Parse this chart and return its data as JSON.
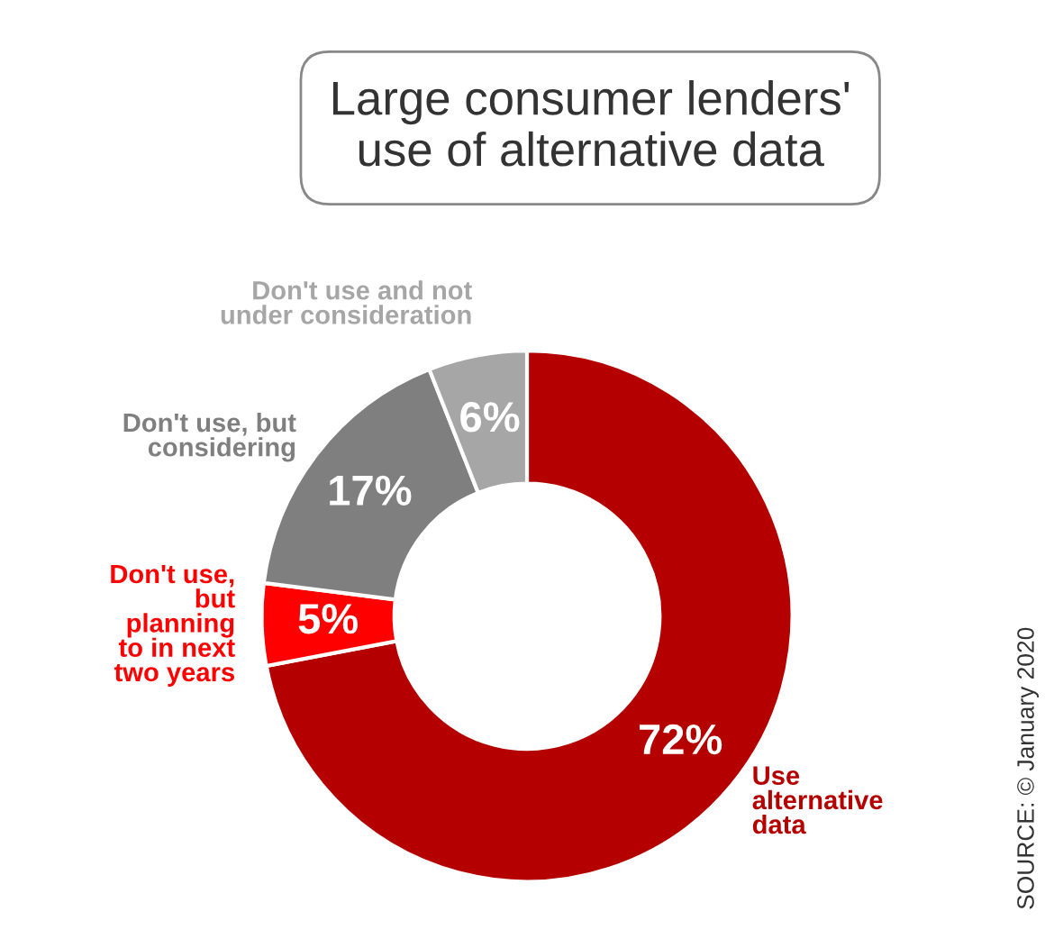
{
  "chart_data": {
    "type": "donut",
    "title": "Large consumer lenders'\nuse of alternative data",
    "categories": [
      "Use\nalternative\ndata",
      "Don't use,\nbut\nplanning\nto in next\ntwo years",
      "Don't use, but\nconsidering",
      "Don't use and not\nunder consideration"
    ],
    "values": [
      72,
      5,
      17,
      6
    ],
    "colors": [
      "#b50000",
      "#ff0000",
      "#7f7f7f",
      "#a6a6a6"
    ],
    "value_labels": [
      "72%",
      "5%",
      "17%",
      "6%"
    ],
    "annotations": [
      "SOURCE: © January 2020"
    ]
  }
}
